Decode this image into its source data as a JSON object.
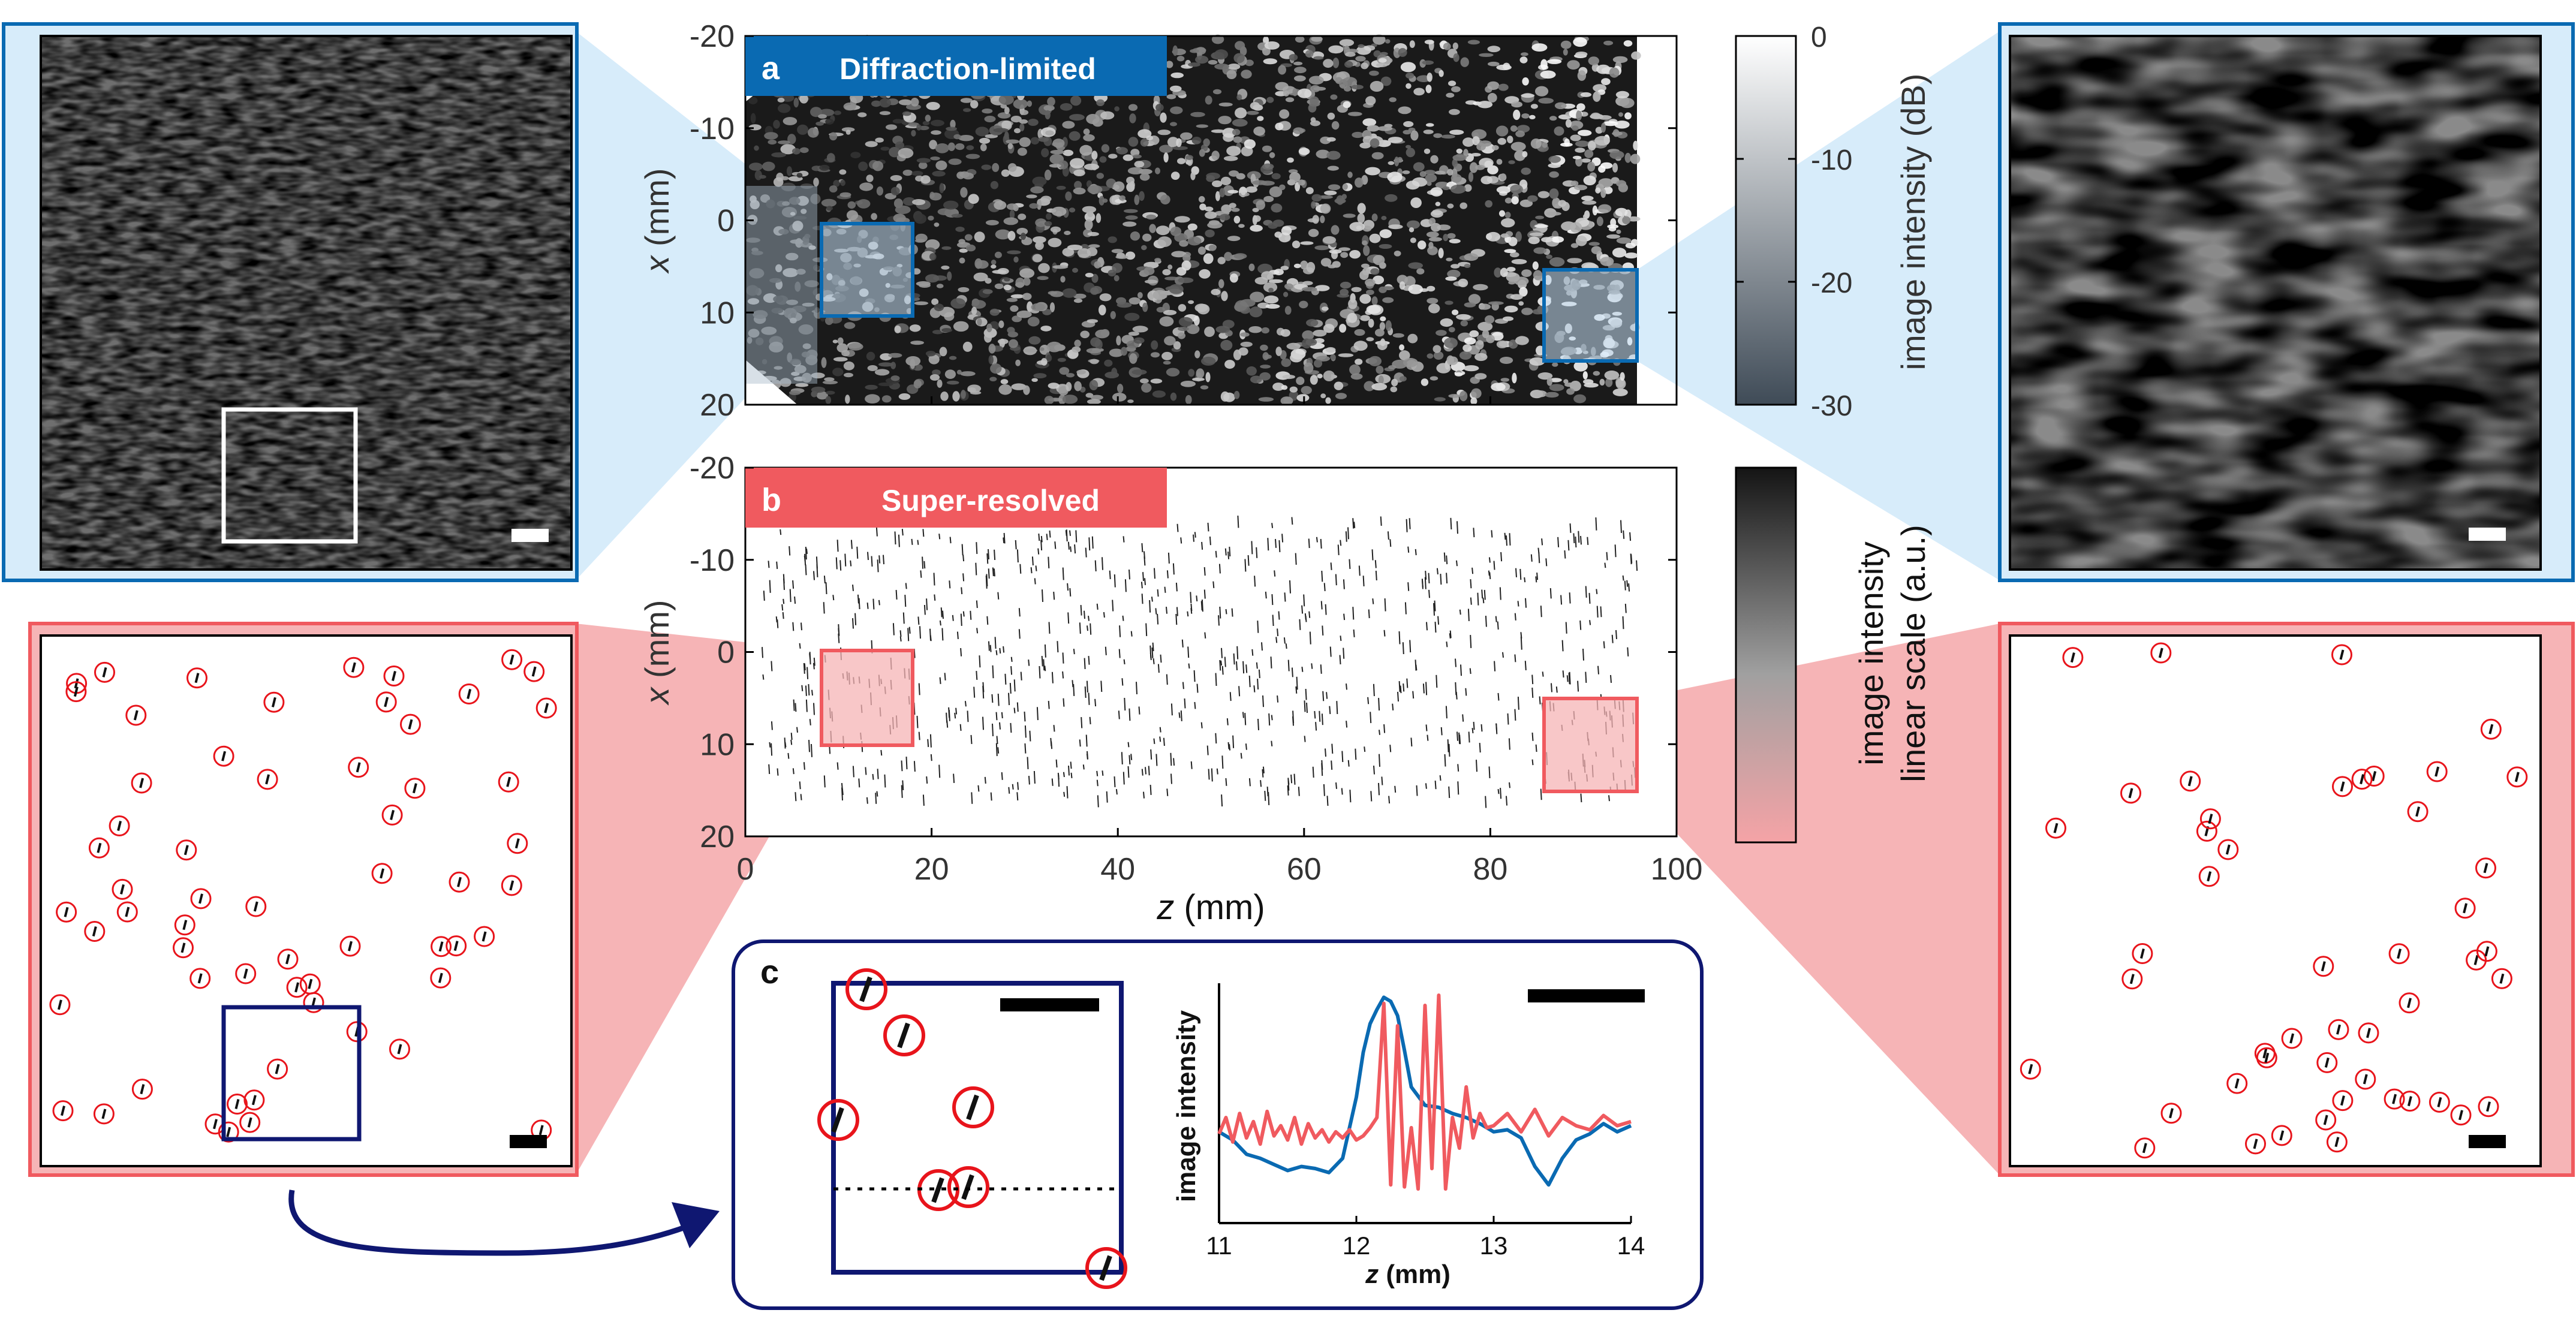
{
  "figure": {
    "panel_a": {
      "label": "a",
      "title": "Diffraction-limited",
      "colorbar_label": "image intensity (dB)",
      "colorbar_ticks": [
        "0",
        "-10",
        "-20",
        "-30"
      ]
    },
    "panel_b": {
      "label": "b",
      "title": "Super-resolved",
      "colorbar_label_1": "image intensity",
      "colorbar_label_2": "linear scale (a.u.)"
    },
    "panel_c": {
      "label": "c"
    },
    "axes": {
      "x_label": "x",
      "x_unit": " (mm)",
      "z_label": "z",
      "z_unit": " (mm)",
      "x_ticks": [
        "-20",
        "-10",
        "0",
        "10",
        "20"
      ],
      "z_ticks": [
        "0",
        "20",
        "40",
        "60",
        "80",
        "100"
      ]
    },
    "colors": {
      "blue": "#0a6ab2",
      "red": "#f05a5f",
      "navy": "#0f1771",
      "light_blue": "#d7ecfa",
      "light_red": "#f6b4b6"
    }
  },
  "chart_data": {
    "type": "line",
    "title": "",
    "xlabel": "z (mm)",
    "ylabel": "image intensity",
    "xlim": [
      11,
      14
    ],
    "ylim": [
      0,
      1
    ],
    "x_ticks": [
      "11",
      "12",
      "13",
      "14"
    ],
    "series": [
      {
        "name": "Diffraction-limited",
        "color": "#0a6ab2",
        "x": [
          11.0,
          11.1,
          11.2,
          11.3,
          11.4,
          11.5,
          11.6,
          11.7,
          11.8,
          11.9,
          12.0,
          12.05,
          12.1,
          12.15,
          12.2,
          12.25,
          12.3,
          12.35,
          12.4,
          12.5,
          12.6,
          12.7,
          12.8,
          12.9,
          13.0,
          13.1,
          13.2,
          13.3,
          13.4,
          13.5,
          13.6,
          13.7,
          13.8,
          13.9,
          14.0
        ],
        "values": [
          0.33,
          0.29,
          0.22,
          0.2,
          0.17,
          0.14,
          0.16,
          0.15,
          0.13,
          0.2,
          0.5,
          0.72,
          0.86,
          0.93,
          0.99,
          0.97,
          0.9,
          0.73,
          0.55,
          0.46,
          0.45,
          0.42,
          0.4,
          0.37,
          0.33,
          0.34,
          0.3,
          0.16,
          0.07,
          0.2,
          0.29,
          0.32,
          0.37,
          0.33,
          0.36
        ]
      },
      {
        "name": "Super-resolved",
        "color": "#f05a5f",
        "x": [
          11.0,
          11.05,
          11.1,
          11.15,
          11.2,
          11.25,
          11.3,
          11.35,
          11.4,
          11.45,
          11.5,
          11.55,
          11.6,
          11.65,
          11.7,
          11.75,
          11.8,
          11.85,
          11.9,
          11.95,
          12.0,
          12.05,
          12.1,
          12.15,
          12.2,
          12.25,
          12.3,
          12.35,
          12.4,
          12.45,
          12.5,
          12.55,
          12.6,
          12.65,
          12.7,
          12.75,
          12.8,
          12.85,
          12.9,
          12.95,
          13.0,
          13.1,
          13.2,
          13.3,
          13.4,
          13.5,
          13.6,
          13.7,
          13.8,
          13.9,
          14.0
        ],
        "values": [
          0.32,
          0.4,
          0.28,
          0.42,
          0.3,
          0.38,
          0.27,
          0.43,
          0.31,
          0.36,
          0.29,
          0.4,
          0.27,
          0.37,
          0.3,
          0.34,
          0.28,
          0.33,
          0.3,
          0.34,
          0.29,
          0.31,
          0.35,
          0.4,
          0.96,
          0.07,
          0.85,
          0.06,
          0.35,
          0.05,
          0.95,
          0.15,
          1.0,
          0.05,
          0.4,
          0.25,
          0.55,
          0.3,
          0.42,
          0.35,
          0.36,
          0.42,
          0.33,
          0.44,
          0.31,
          0.4,
          0.36,
          0.34,
          0.41,
          0.36,
          0.38
        ]
      }
    ]
  }
}
